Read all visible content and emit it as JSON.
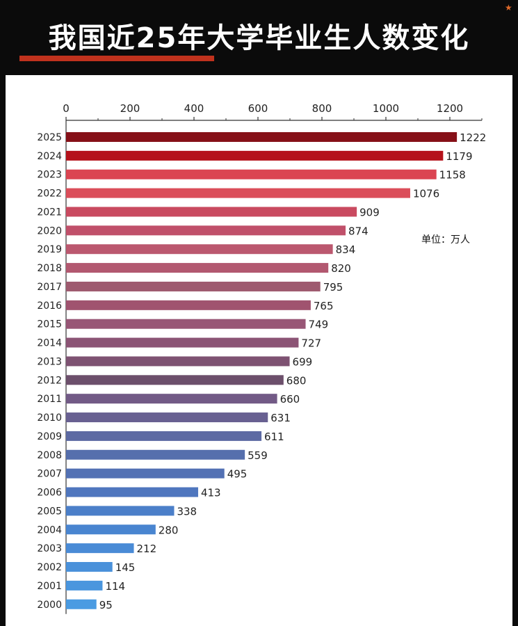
{
  "chart_data": {
    "type": "bar",
    "orientation": "horizontal",
    "title": "我国近25年大学毕业生人数变化",
    "unit_label": "单位：万人",
    "categories": [
      "2025",
      "2024",
      "2023",
      "2022",
      "2021",
      "2020",
      "2019",
      "2018",
      "2017",
      "2016",
      "2015",
      "2014",
      "2013",
      "2012",
      "2011",
      "2010",
      "2009",
      "2008",
      "2007",
      "2006",
      "2005",
      "2004",
      "2003",
      "2002",
      "2001",
      "2000"
    ],
    "values": [
      1222,
      1179,
      1158,
      1076,
      909,
      874,
      834,
      820,
      795,
      765,
      749,
      727,
      699,
      680,
      660,
      631,
      611,
      559,
      495,
      413,
      338,
      280,
      212,
      145,
      114,
      95
    ],
    "colors": [
      "#861018",
      "#b5121b",
      "#db4552",
      "#db4e5a",
      "#c94a60",
      "#c0506a",
      "#bb586f",
      "#b25870",
      "#9e5a6f",
      "#a0536f",
      "#985676",
      "#8c5475",
      "#7e5272",
      "#6c4f6b",
      "#725a86",
      "#686091",
      "#5d6aa3",
      "#566fad",
      "#5371b4",
      "#4f76be",
      "#4b7fc9",
      "#4985d0",
      "#4a8bd6",
      "#4a91da",
      "#4a96de",
      "#4a9be2"
    ],
    "xlim": [
      0,
      1300
    ],
    "xticks": [
      0,
      200,
      400,
      600,
      800,
      1000,
      1200
    ],
    "xtick_labels": [
      "0",
      "200",
      "400",
      "600",
      "800",
      "1000",
      "1200"
    ],
    "axis_position": "top"
  }
}
